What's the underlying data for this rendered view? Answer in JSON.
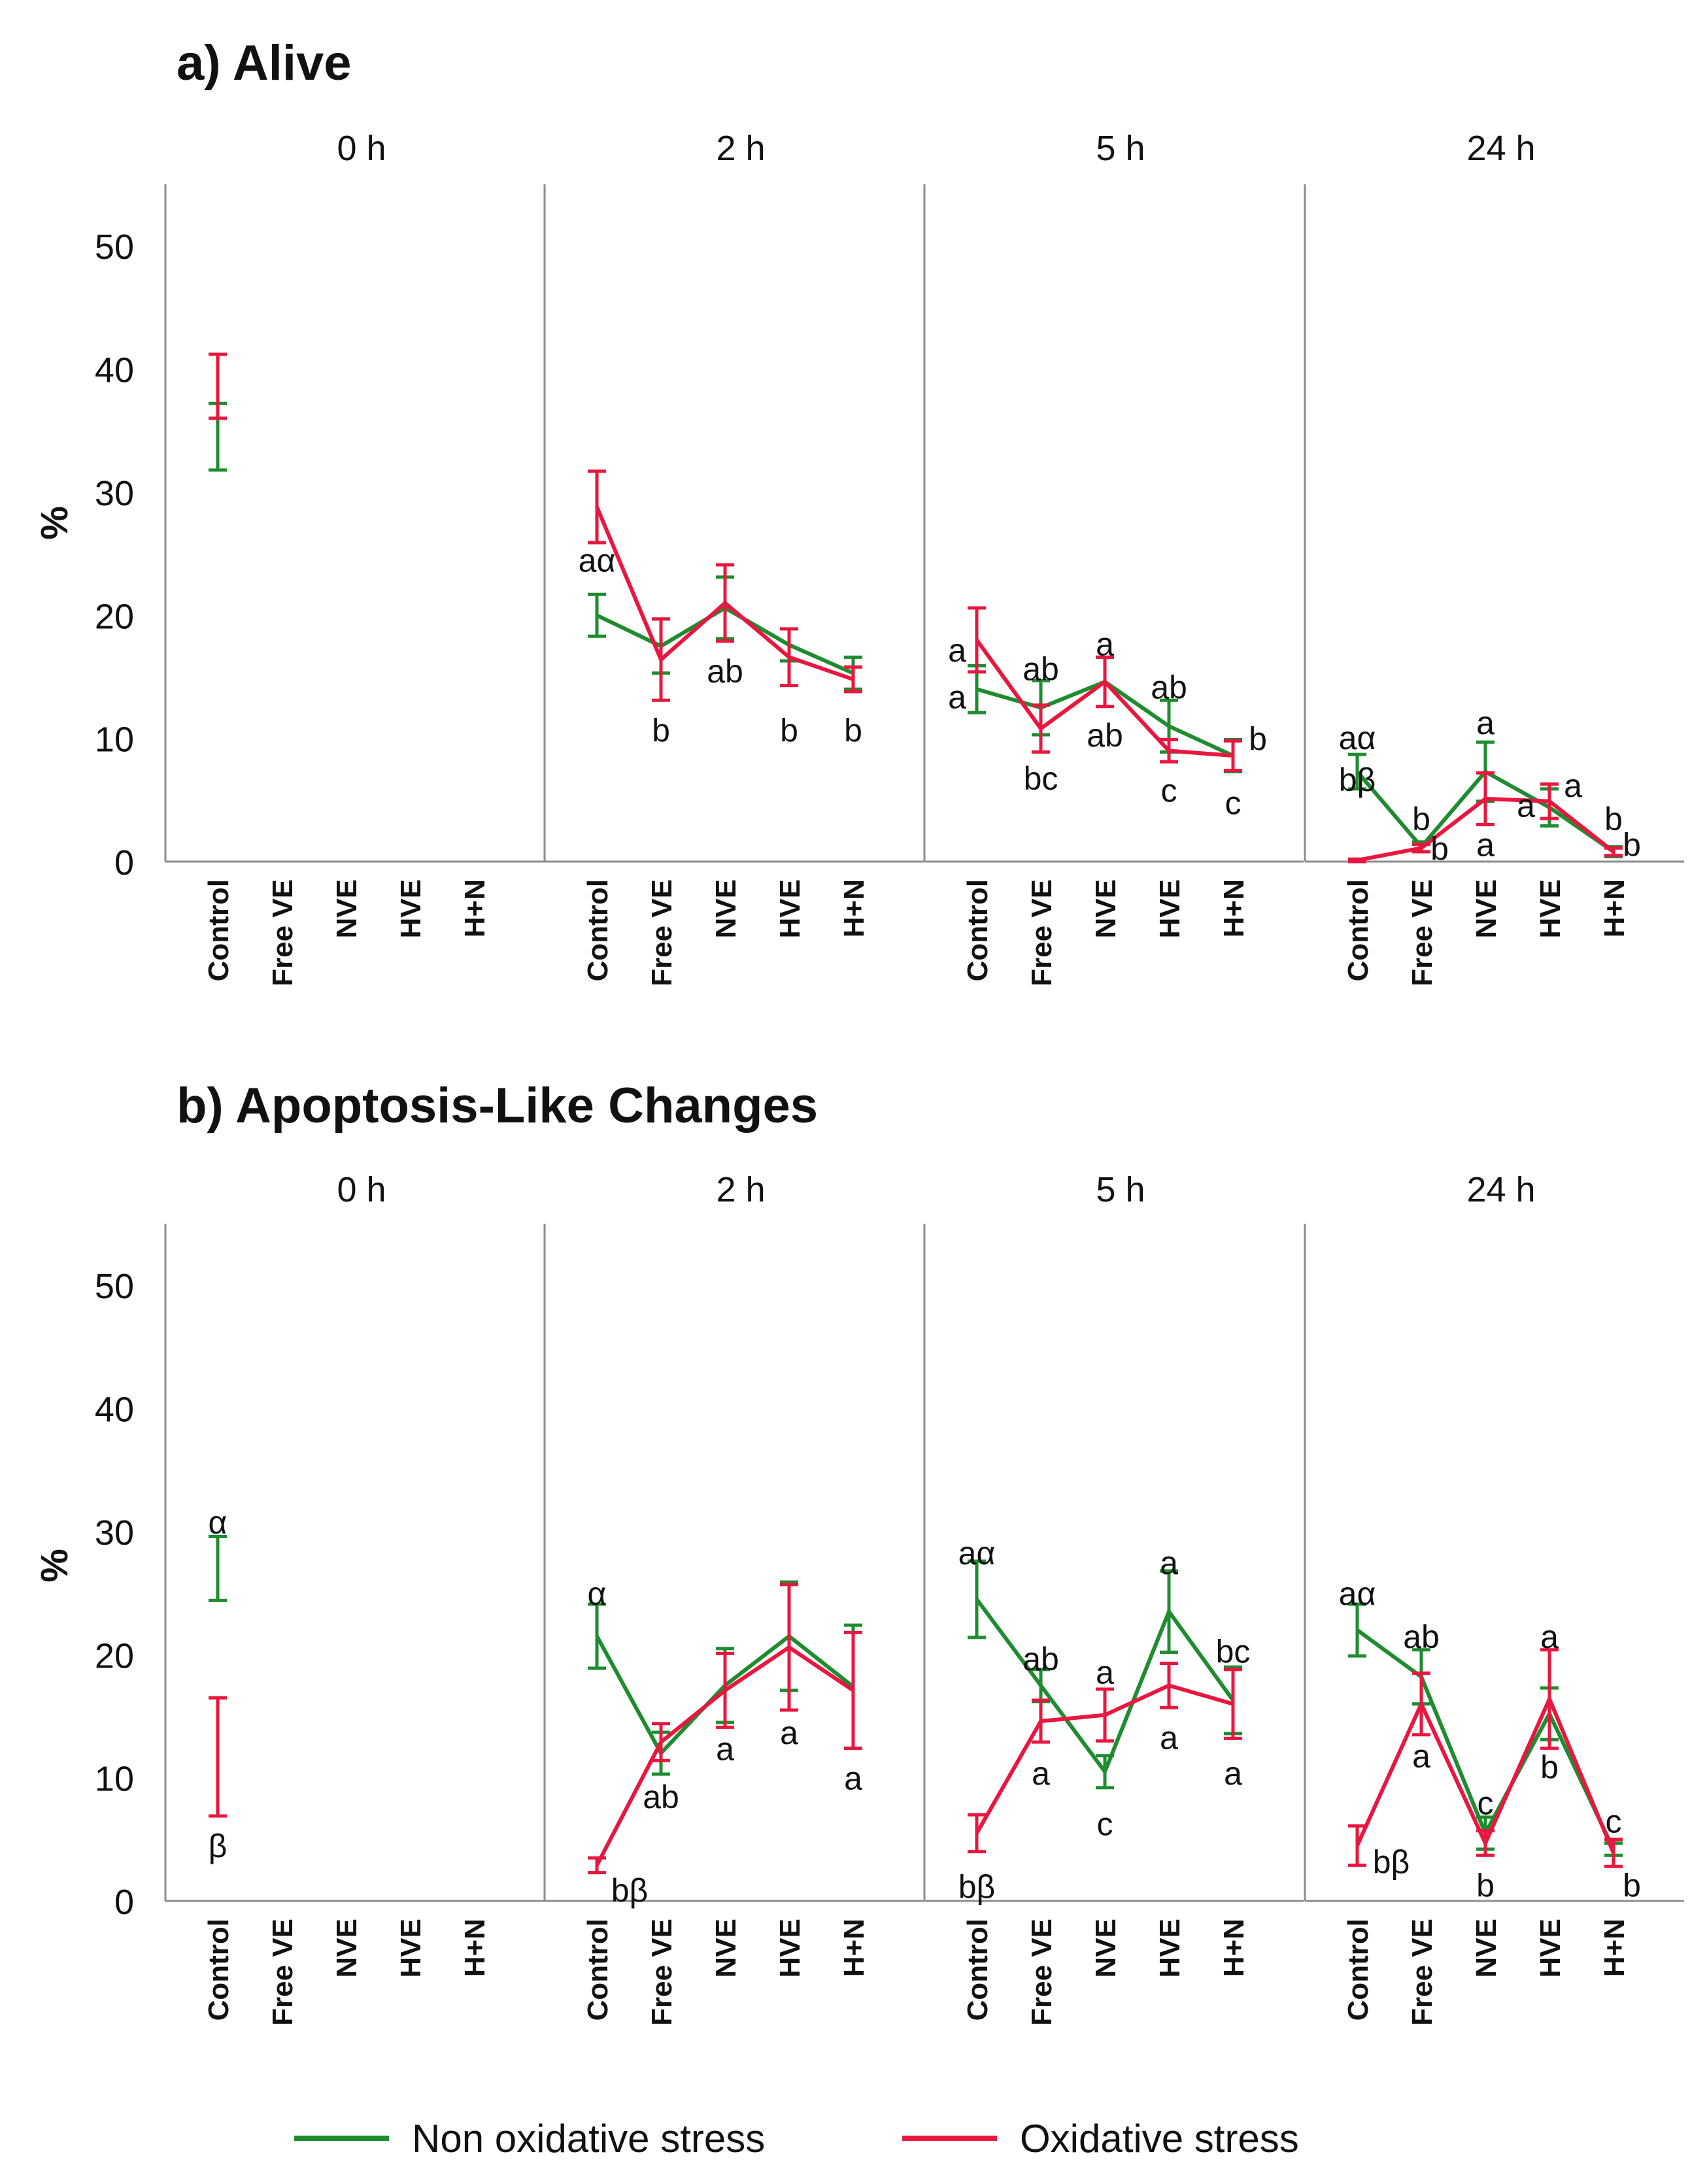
{
  "chart_data": [
    {
      "type": "line",
      "title": "a) Alive",
      "ylabel": "%",
      "ylim": [
        0,
        55
      ],
      "yticks": [
        0,
        10,
        20,
        30,
        40,
        50
      ],
      "categories": [
        "Control",
        "Free VE",
        "NVE",
        "HVE",
        "H+N"
      ],
      "panels": [
        {
          "label": "0 h",
          "series": [
            {
              "name": "Non oxidative stress",
              "values": [
                34.5,
                null,
                null,
                null,
                null
              ],
              "err": [
                2.7,
                null,
                null,
                null,
                null
              ]
            },
            {
              "name": "Oxidative stress",
              "values": [
                38.6,
                null,
                null,
                null,
                null
              ],
              "err": [
                2.6,
                null,
                null,
                null,
                null
              ]
            }
          ],
          "annotations": []
        },
        {
          "label": "2 h",
          "series": [
            {
              "name": "Non oxidative stress",
              "values": [
                20.0,
                17.5,
                20.6,
                17.6,
                15.3
              ],
              "err": [
                1.7,
                2.2,
                2.5,
                1.3,
                1.3
              ]
            },
            {
              "name": "Oxidative stress",
              "values": [
                28.8,
                16.4,
                21.0,
                16.6,
                14.8
              ],
              "err": [
                2.9,
                3.3,
                3.1,
                2.3,
                1.0
              ]
            }
          ],
          "annotations": [
            {
              "text": "aα",
              "x": 0,
              "y": 24.5
            },
            {
              "text": "b",
              "x": 1,
              "y": 10.7
            },
            {
              "text": "ab",
              "x": 2,
              "y": 15.5
            },
            {
              "text": "b",
              "x": 3,
              "y": 10.7
            },
            {
              "text": "b",
              "x": 4,
              "y": 10.7
            }
          ]
        },
        {
          "label": "5 h",
          "series": [
            {
              "name": "Non oxidative stress",
              "values": [
                14.0,
                12.5,
                14.6,
                11.0,
                8.6
              ],
              "err": [
                1.9,
                2.2,
                2.0,
                2.1,
                1.3
              ]
            },
            {
              "name": "Oxidative stress",
              "values": [
                18.0,
                10.8,
                14.6,
                9.0,
                8.6
              ],
              "err": [
                2.6,
                1.9,
                2.0,
                0.9,
                1.2
              ]
            }
          ],
          "annotations": [
            {
              "text": "a",
              "x": 0,
              "y": 17.2,
              "dx": -30
            },
            {
              "text": "a",
              "x": 0,
              "y": 13.4,
              "dx": -30
            },
            {
              "text": "ab",
              "x": 1,
              "y": 15.7
            },
            {
              "text": "bc",
              "x": 1,
              "y": 6.8
            },
            {
              "text": "a",
              "x": 2,
              "y": 17.7
            },
            {
              "text": "ab",
              "x": 2,
              "y": 10.3
            },
            {
              "text": "ab",
              "x": 3,
              "y": 14.2
            },
            {
              "text": "c",
              "x": 3,
              "y": 5.8
            },
            {
              "text": "c",
              "x": 4,
              "y": 4.8
            },
            {
              "text": "b",
              "x": 4,
              "y": 10.0,
              "dx": 38
            }
          ]
        },
        {
          "label": "24 h",
          "series": [
            {
              "name": "Non oxidative stress",
              "values": [
                7.3,
                1.2,
                7.3,
                4.4,
                0.8
              ],
              "err": [
                1.4,
                0.4,
                2.4,
                1.5,
                0.4
              ]
            },
            {
              "name": "Oxidative stress",
              "values": [
                0.1,
                1.1,
                5.1,
                4.9,
                0.8
              ],
              "err": [
                0.1,
                0.3,
                2.1,
                1.4,
                0.3
              ]
            }
          ],
          "annotations": [
            {
              "text": "aα",
              "x": 0,
              "y": 10.1
            },
            {
              "text": "bβ",
              "x": 0,
              "y": 6.7
            },
            {
              "text": "b",
              "x": 1,
              "y": 3.5
            },
            {
              "text": "b",
              "x": 1,
              "y": 1.1,
              "dx": 28
            },
            {
              "text": "a",
              "x": 2,
              "y": 11.3
            },
            {
              "text": "a",
              "x": 2,
              "y": 1.4
            },
            {
              "text": "a",
              "x": 3,
              "y": 4.6,
              "dx": -36
            },
            {
              "text": "a",
              "x": 3,
              "y": 6.2,
              "dx": 36
            },
            {
              "text": "b",
              "x": 4,
              "y": 3.5
            },
            {
              "text": "b",
              "x": 4,
              "y": 1.4,
              "dx": 28
            }
          ]
        }
      ]
    },
    {
      "type": "line",
      "title": "b) Apoptosis-Like Changes",
      "ylabel": "%",
      "ylim": [
        0,
        55
      ],
      "yticks": [
        0,
        10,
        20,
        30,
        40,
        50
      ],
      "categories": [
        "Control",
        "Free VE",
        "NVE",
        "HVE",
        "H+N"
      ],
      "panels": [
        {
          "label": "0 h",
          "series": [
            {
              "name": "Non oxidative stress",
              "values": [
                27.0,
                null,
                null,
                null,
                null
              ],
              "err": [
                2.6,
                null,
                null,
                null,
                null
              ]
            },
            {
              "name": "Oxidative stress",
              "values": [
                11.7,
                null,
                null,
                null,
                null
              ],
              "err": [
                4.8,
                null,
                null,
                null,
                null
              ]
            }
          ],
          "annotations": [
            {
              "text": "α",
              "x": 0,
              "y": 30.8
            },
            {
              "text": "β",
              "x": 0,
              "y": 4.5
            }
          ]
        },
        {
          "label": "2 h",
          "series": [
            {
              "name": "Non oxidative stress",
              "values": [
                21.5,
                12.0,
                17.5,
                21.5,
                17.4
              ],
              "err": [
                2.6,
                1.7,
                3.0,
                4.4,
                5.0
              ]
            },
            {
              "name": "Oxidative stress",
              "values": [
                2.9,
                12.9,
                17.1,
                20.6,
                17.1
              ],
              "err": [
                0.6,
                1.5,
                3.0,
                5.1,
                4.7
              ]
            }
          ],
          "annotations": [
            {
              "text": "α",
              "x": 0,
              "y": 25.0
            },
            {
              "text": "bβ",
              "x": 0,
              "y": 0.9,
              "dx": 50
            },
            {
              "text": "ab",
              "x": 1,
              "y": 8.5
            },
            {
              "text": "a",
              "x": 2,
              "y": 12.4
            },
            {
              "text": "a",
              "x": 3,
              "y": 13.7
            },
            {
              "text": "a",
              "x": 4,
              "y": 10.0
            }
          ]
        },
        {
          "label": "5 h",
          "series": [
            {
              "name": "Non oxidative stress",
              "values": [
                24.5,
                17.5,
                10.5,
                23.5,
                16.3
              ],
              "err": [
                3.1,
                1.3,
                1.3,
                3.3,
                2.7
              ]
            },
            {
              "name": "Oxidative stress",
              "values": [
                5.5,
                14.6,
                15.1,
                17.5,
                16.0
              ],
              "err": [
                1.5,
                1.7,
                2.1,
                1.8,
                2.8
              ]
            }
          ],
          "annotations": [
            {
              "text": "aα",
              "x": 0,
              "y": 28.3
            },
            {
              "text": "bβ",
              "x": 0,
              "y": 1.2
            },
            {
              "text": "ab",
              "x": 1,
              "y": 19.7
            },
            {
              "text": "a",
              "x": 1,
              "y": 10.4
            },
            {
              "text": "a",
              "x": 2,
              "y": 18.6
            },
            {
              "text": "c",
              "x": 2,
              "y": 6.3
            },
            {
              "text": "a",
              "x": 3,
              "y": 27.5
            },
            {
              "text": "a",
              "x": 3,
              "y": 13.3
            },
            {
              "text": "bc",
              "x": 4,
              "y": 20.3
            },
            {
              "text": "a",
              "x": 4,
              "y": 10.4
            }
          ]
        },
        {
          "label": "24 h",
          "series": [
            {
              "name": "Non oxidative stress",
              "values": [
                22.0,
                18.2,
                5.5,
                15.2,
                4.2
              ],
              "err": [
                2.1,
                2.2,
                1.3,
                2.1,
                0.5
              ]
            },
            {
              "name": "Oxidative stress",
              "values": [
                4.5,
                16.0,
                4.7,
                16.4,
                3.9
              ],
              "err": [
                1.6,
                2.5,
                1.0,
                4.0,
                1.1
              ]
            }
          ],
          "annotations": [
            {
              "text": "aα",
              "x": 0,
              "y": 25.0
            },
            {
              "text": "bβ",
              "x": 0,
              "y": 3.2,
              "dx": 52
            },
            {
              "text": "ab",
              "x": 1,
              "y": 21.5
            },
            {
              "text": "a",
              "x": 1,
              "y": 11.8
            },
            {
              "text": "c",
              "x": 2,
              "y": 8.0
            },
            {
              "text": "b",
              "x": 2,
              "y": 1.3
            },
            {
              "text": "a",
              "x": 3,
              "y": 21.5
            },
            {
              "text": "b",
              "x": 3,
              "y": 10.9
            },
            {
              "text": "c",
              "x": 4,
              "y": 6.5
            },
            {
              "text": "b",
              "x": 4,
              "y": 1.3,
              "dx": 28
            }
          ]
        }
      ]
    }
  ],
  "legend": {
    "position": "bottom-center",
    "entries": [
      {
        "label": "Non oxidative stress",
        "color": "#1e8c2f"
      },
      {
        "label": "Oxidative stress",
        "color": "#e8173f"
      }
    ]
  },
  "colors": {
    "non_oxidative": "#1e8c2f",
    "oxidative": "#e8173f",
    "axis": "#8c8c8c",
    "text": "#111111"
  }
}
